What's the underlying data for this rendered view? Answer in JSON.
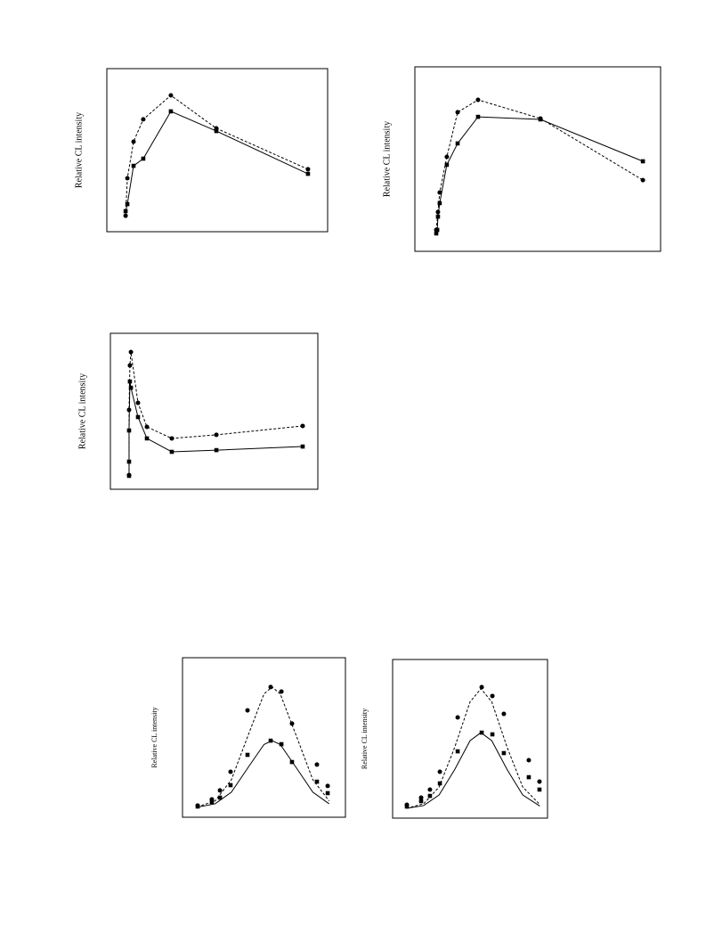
{
  "chart_data": [
    {
      "type": "line",
      "y_label": "Relative CL intensity",
      "xlim": [
        0,
        100
      ],
      "ylim": [
        0,
        100
      ],
      "series": [
        {
          "color": "#000000",
          "marker": "circle",
          "line": "dashed",
          "x": [
            8.5,
            9.3,
            12.1,
            16.5,
            29,
            49.6,
            91.1
          ],
          "values": [
            9.8,
            32.8,
            55.2,
            68.9,
            83.6,
            63.4,
            38.3
          ]
        },
        {
          "color": "#000000",
          "marker": "square",
          "line": "solid",
          "x": [
            8.5,
            9.3,
            12.1,
            16.5,
            29,
            49.6,
            91.1
          ],
          "values": [
            12.6,
            16.9,
            40.4,
            44.8,
            73.8,
            61.7,
            35.5
          ]
        }
      ]
    },
    {
      "type": "line",
      "y_label": "Relative CL intensity",
      "xlim": [
        0,
        100
      ],
      "ylim": [
        0,
        100
      ],
      "series": [
        {
          "color": "#000000",
          "marker": "square",
          "line": "solid",
          "x": [
            8.7,
            9.1,
            9.4,
            10.1,
            13,
            17.4,
            25.7,
            51.1,
            92.8
          ],
          "values": [
            9.7,
            11.6,
            18.8,
            26.1,
            46.9,
            58.5,
            72.9,
            71.5,
            48.8
          ]
        },
        {
          "color": "#000000",
          "marker": "circle",
          "line": "dashed",
          "x": [
            8.7,
            9.4,
            10.1,
            13,
            17.4,
            25.7,
            51.1,
            92.8
          ],
          "values": [
            11.6,
            21.3,
            31.9,
            51.2,
            75.4,
            82.1,
            72,
            38.6
          ]
        }
      ]
    },
    {
      "type": "line",
      "y_label": "Relative CL intensity",
      "xlim": [
        0,
        100
      ],
      "ylim": [
        0,
        100
      ],
      "series": [
        {
          "color": "#000000",
          "marker": "circle",
          "line": "dashed",
          "x": [
            9,
            9,
            9.4,
            9.9,
            13.3,
            17.6,
            29.6,
            51.1,
            92.7
          ],
          "values": [
            9.1,
            50.9,
            79.4,
            88,
            55.4,
            40,
            32.6,
            34.9,
            40.6
          ]
        },
        {
          "color": "#000000",
          "marker": "square",
          "line": "solid",
          "x": [
            9,
            9,
            9,
            9.4,
            9.9,
            13.3,
            17.6,
            29.6,
            51.1,
            92.7
          ],
          "values": [
            8.6,
            17.7,
            37.7,
            69.1,
            65.1,
            46.3,
            32.6,
            24,
            25.1,
            27.4
          ]
        }
      ]
    },
    {
      "type": "line",
      "y_label": "Relative CL intensity",
      "xlim": [
        0,
        100
      ],
      "ylim": [
        0,
        100
      ],
      "series": [
        {
          "color": "#000000",
          "line": "dashed",
          "x": [
            9,
            20,
            30,
            40,
            50,
            55,
            60,
            70,
            80,
            90
          ],
          "values": [
            6.5,
            10.2,
            23.5,
            50.6,
            77.3,
            81.6,
            77.3,
            50.6,
            23.5,
            10.2
          ]
        },
        {
          "color": "#000000",
          "line": "solid",
          "x": [
            9,
            20,
            30,
            40,
            50,
            55,
            60,
            70,
            80,
            90
          ],
          "values": [
            6.3,
            8.4,
            15.7,
            30.8,
            45.6,
            48,
            45.6,
            30.8,
            15.7,
            8.4
          ]
        },
        {
          "color": "#000000",
          "marker": "circle",
          "x": [
            9.3,
            18,
            23,
            29.5,
            39.9,
            54.1,
            60.7,
            67.2,
            82.5,
            89.1
          ],
          "values": [
            7.3,
            11.2,
            16.8,
            28.5,
            67,
            81.6,
            78.8,
            58.7,
            33,
            19.6
          ]
        },
        {
          "color": "#000000",
          "marker": "square",
          "x": [
            9.3,
            18,
            23,
            29.5,
            39.9,
            54.1,
            60.7,
            67.2,
            82.5,
            89.1
          ],
          "values": [
            6.7,
            9.5,
            12.3,
            20.1,
            39.1,
            48,
            45.8,
            34.6,
            22.3,
            15.1
          ]
        }
      ]
    },
    {
      "type": "line",
      "y_label": "Relative CL intensity",
      "xlim": [
        0,
        100
      ],
      "ylim": [
        0,
        100
      ],
      "series": [
        {
          "color": "#000000",
          "line": "dashed",
          "x": [
            9,
            20,
            30,
            40,
            50,
            57,
            64,
            74,
            84,
            95
          ],
          "values": [
            6.3,
            9,
            19.6,
            44.4,
            73.3,
            81.6,
            73.3,
            44.4,
            19.6,
            8.6
          ]
        },
        {
          "color": "#000000",
          "line": "solid",
          "x": [
            9,
            20,
            30,
            40,
            50,
            57,
            64,
            74,
            84,
            95
          ],
          "values": [
            6.2,
            7.9,
            14.6,
            30.5,
            48.8,
            53.9,
            48.8,
            30.5,
            14.6,
            7.6
          ]
        },
        {
          "color": "#000000",
          "marker": "circle",
          "x": [
            9.2,
            18.4,
            24.1,
            30.5,
            42,
            57.5,
            64.4,
            71.8,
            87.9,
            94.8
          ],
          "values": [
            8.4,
            12.9,
            18,
            29.2,
            63.5,
            82.6,
            77,
            65.7,
            36.5,
            23
          ]
        },
        {
          "color": "#000000",
          "marker": "square",
          "x": [
            9.2,
            18.4,
            24.1,
            30.5,
            42,
            57.5,
            64.4,
            71.8,
            87.9,
            94.8
          ],
          "values": [
            7.3,
            10.7,
            14,
            21.9,
            42.1,
            53.9,
            52.8,
            41,
            25.8,
            18
          ]
        }
      ]
    }
  ]
}
